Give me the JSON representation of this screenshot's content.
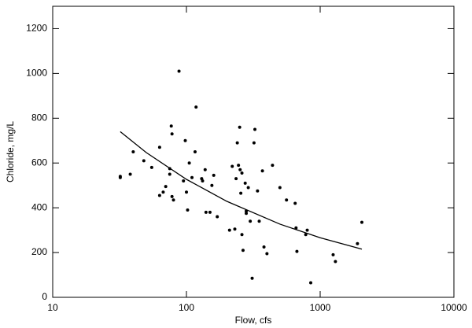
{
  "chart_data": {
    "type": "scatter",
    "xlabel": "Flow, cfs",
    "ylabel": "Chloride, mg/L",
    "xscale": "log",
    "xlim": [
      10,
      10000
    ],
    "xticks": [
      10,
      100,
      1000,
      10000
    ],
    "ylim": [
      0,
      1300
    ],
    "yticks": [
      0,
      200,
      400,
      600,
      800,
      1000,
      1200
    ],
    "series": [
      {
        "type": "scatter",
        "color": "#000000",
        "x": [
          32,
          32,
          38,
          40,
          48,
          55,
          63,
          63,
          67,
          70,
          75,
          75,
          77,
          78,
          78,
          80,
          88,
          95,
          98,
          100,
          102,
          105,
          110,
          116,
          118,
          130,
          132,
          138,
          140,
          150,
          155,
          160,
          170,
          210,
          220,
          230,
          235,
          240,
          245,
          250,
          252,
          255,
          260,
          260,
          265,
          275,
          280,
          280,
          290,
          300,
          310,
          320,
          325,
          340,
          350,
          370,
          380,
          400,
          440,
          500,
          560,
          650,
          660,
          670,
          780,
          800,
          850,
          1250,
          1300,
          1900,
          2050
        ],
        "values": [
          540,
          535,
          550,
          650,
          610,
          580,
          670,
          455,
          470,
          495,
          550,
          575,
          765,
          730,
          450,
          435,
          1010,
          520,
          700,
          470,
          390,
          600,
          535,
          650,
          850,
          530,
          520,
          570,
          380,
          380,
          500,
          545,
          360,
          300,
          585,
          305,
          530,
          690,
          590,
          760,
          570,
          465,
          555,
          280,
          210,
          510,
          385,
          375,
          490,
          340,
          85,
          690,
          750,
          475,
          340,
          565,
          225,
          195,
          590,
          490,
          435,
          420,
          310,
          205,
          280,
          300,
          65,
          190,
          160,
          240,
          335
        ]
      },
      {
        "type": "line",
        "color": "#000000",
        "x": [
          32,
          50,
          100,
          200,
          500,
          1000,
          2050
        ],
        "values": [
          740,
          647,
          527,
          429,
          327,
          266,
          215
        ]
      }
    ]
  }
}
